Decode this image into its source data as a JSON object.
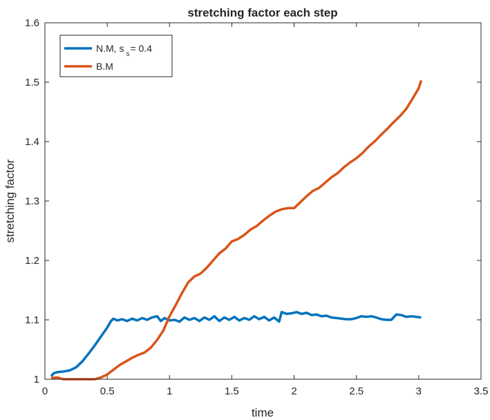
{
  "chart_data": {
    "type": "line",
    "title": "stretching factor each step",
    "xlabel": "time",
    "ylabel": "stretching factor",
    "xlim": [
      0,
      3.5
    ],
    "ylim": [
      1.0,
      1.6
    ],
    "xticks": [
      "0",
      "0.5",
      "1",
      "1.5",
      "2",
      "2.5",
      "3",
      "3.5"
    ],
    "yticks": [
      "1",
      "1.1",
      "1.2",
      "1.3",
      "1.4",
      "1.5",
      "1.6"
    ],
    "grid": false,
    "legend": {
      "position": "top-left",
      "entries": [
        {
          "text": "N.M, s",
          "subscript": "s",
          "suffix": "= 0.4",
          "color": "#0072BD"
        },
        {
          "text": "B.M",
          "color": "#D95319"
        }
      ]
    },
    "series": [
      {
        "name": "N.M, s_s = 0.4",
        "color": "#0072BD",
        "points": [
          [
            0.05,
            1.005
          ],
          [
            0.07,
            1.01
          ],
          [
            0.1,
            1.012
          ],
          [
            0.15,
            1.013
          ],
          [
            0.2,
            1.015
          ],
          [
            0.25,
            1.02
          ],
          [
            0.3,
            1.03
          ],
          [
            0.35,
            1.043
          ],
          [
            0.4,
            1.057
          ],
          [
            0.45,
            1.072
          ],
          [
            0.5,
            1.087
          ],
          [
            0.53,
            1.098
          ],
          [
            0.55,
            1.102
          ],
          [
            0.58,
            1.099
          ],
          [
            0.62,
            1.101
          ],
          [
            0.66,
            1.098
          ],
          [
            0.7,
            1.102
          ],
          [
            0.74,
            1.099
          ],
          [
            0.78,
            1.103
          ],
          [
            0.82,
            1.1
          ],
          [
            0.86,
            1.104
          ],
          [
            0.9,
            1.106
          ],
          [
            0.93,
            1.098
          ],
          [
            0.96,
            1.103
          ],
          [
            1.0,
            1.099
          ],
          [
            1.04,
            1.1
          ],
          [
            1.08,
            1.097
          ],
          [
            1.12,
            1.104
          ],
          [
            1.16,
            1.1
          ],
          [
            1.2,
            1.103
          ],
          [
            1.24,
            1.098
          ],
          [
            1.28,
            1.104
          ],
          [
            1.32,
            1.1
          ],
          [
            1.36,
            1.106
          ],
          [
            1.4,
            1.098
          ],
          [
            1.44,
            1.104
          ],
          [
            1.48,
            1.1
          ],
          [
            1.52,
            1.105
          ],
          [
            1.56,
            1.099
          ],
          [
            1.6,
            1.103
          ],
          [
            1.64,
            1.1
          ],
          [
            1.68,
            1.106
          ],
          [
            1.72,
            1.101
          ],
          [
            1.76,
            1.105
          ],
          [
            1.8,
            1.099
          ],
          [
            1.84,
            1.104
          ],
          [
            1.88,
            1.097
          ],
          [
            1.9,
            1.113
          ],
          [
            1.94,
            1.11
          ],
          [
            1.98,
            1.111
          ],
          [
            2.02,
            1.113
          ],
          [
            2.06,
            1.11
          ],
          [
            2.1,
            1.112
          ],
          [
            2.14,
            1.108
          ],
          [
            2.18,
            1.109
          ],
          [
            2.22,
            1.106
          ],
          [
            2.26,
            1.107
          ],
          [
            2.3,
            1.104
          ],
          [
            2.34,
            1.103
          ],
          [
            2.38,
            1.102
          ],
          [
            2.42,
            1.101
          ],
          [
            2.46,
            1.101
          ],
          [
            2.5,
            1.103
          ],
          [
            2.54,
            1.106
          ],
          [
            2.58,
            1.105
          ],
          [
            2.62,
            1.106
          ],
          [
            2.66,
            1.104
          ],
          [
            2.7,
            1.101
          ],
          [
            2.74,
            1.1
          ],
          [
            2.78,
            1.1
          ],
          [
            2.82,
            1.109
          ],
          [
            2.86,
            1.108
          ],
          [
            2.9,
            1.105
          ],
          [
            2.94,
            1.106
          ],
          [
            2.98,
            1.105
          ],
          [
            3.02,
            1.104
          ]
        ]
      },
      {
        "name": "B.M",
        "color": "#D95319",
        "points": [
          [
            0.05,
            1.002
          ],
          [
            0.1,
            1.003
          ],
          [
            0.15,
            1.0
          ],
          [
            0.2,
            1.0
          ],
          [
            0.25,
            1.0
          ],
          [
            0.3,
            1.0
          ],
          [
            0.35,
            1.0
          ],
          [
            0.4,
            1.0
          ],
          [
            0.45,
            1.003
          ],
          [
            0.5,
            1.008
          ],
          [
            0.55,
            1.016
          ],
          [
            0.6,
            1.024
          ],
          [
            0.65,
            1.03
          ],
          [
            0.7,
            1.036
          ],
          [
            0.75,
            1.041
          ],
          [
            0.8,
            1.045
          ],
          [
            0.85,
            1.053
          ],
          [
            0.9,
            1.066
          ],
          [
            0.95,
            1.082
          ],
          [
            1.0,
            1.106
          ],
          [
            1.05,
            1.125
          ],
          [
            1.1,
            1.145
          ],
          [
            1.15,
            1.163
          ],
          [
            1.2,
            1.173
          ],
          [
            1.25,
            1.178
          ],
          [
            1.3,
            1.188
          ],
          [
            1.35,
            1.2
          ],
          [
            1.4,
            1.212
          ],
          [
            1.45,
            1.22
          ],
          [
            1.5,
            1.232
          ],
          [
            1.55,
            1.236
          ],
          [
            1.6,
            1.243
          ],
          [
            1.65,
            1.252
          ],
          [
            1.7,
            1.258
          ],
          [
            1.75,
            1.267
          ],
          [
            1.8,
            1.275
          ],
          [
            1.85,
            1.282
          ],
          [
            1.9,
            1.286
          ],
          [
            1.95,
            1.288
          ],
          [
            2.0,
            1.288
          ],
          [
            2.05,
            1.298
          ],
          [
            2.1,
            1.308
          ],
          [
            2.15,
            1.317
          ],
          [
            2.2,
            1.322
          ],
          [
            2.25,
            1.331
          ],
          [
            2.3,
            1.34
          ],
          [
            2.35,
            1.347
          ],
          [
            2.4,
            1.357
          ],
          [
            2.45,
            1.365
          ],
          [
            2.5,
            1.372
          ],
          [
            2.55,
            1.381
          ],
          [
            2.6,
            1.392
          ],
          [
            2.65,
            1.401
          ],
          [
            2.7,
            1.412
          ],
          [
            2.75,
            1.422
          ],
          [
            2.8,
            1.433
          ],
          [
            2.85,
            1.443
          ],
          [
            2.9,
            1.455
          ],
          [
            2.95,
            1.472
          ],
          [
            3.0,
            1.49
          ],
          [
            3.02,
            1.503
          ]
        ]
      }
    ]
  }
}
